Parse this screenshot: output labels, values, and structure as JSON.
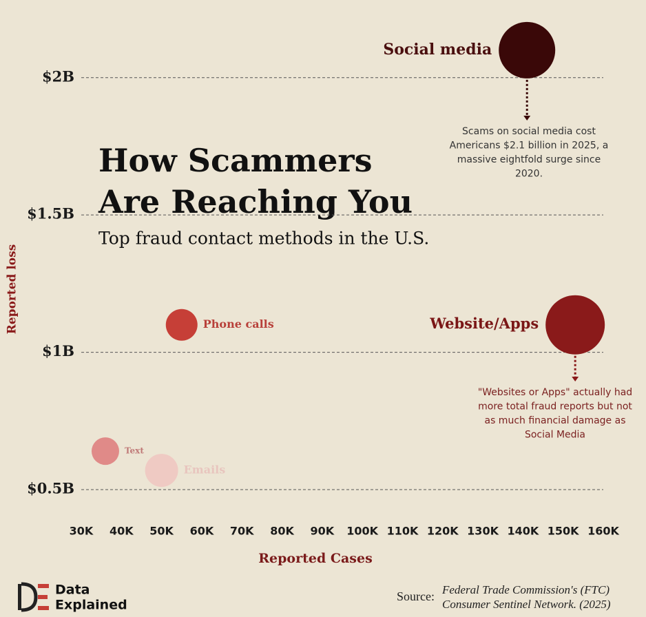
{
  "chart_data": {
    "type": "bubble",
    "title_lines": [
      "How Scammers",
      "Are Reaching You"
    ],
    "subtitle": "Top fraud contact methods in the U.S.",
    "x_label": "Reported Cases",
    "y_label": "Reported loss",
    "xlim": [
      30,
      160
    ],
    "ylim": [
      0.5,
      2.2
    ],
    "xticks": [
      {
        "value": 30,
        "label": "30K"
      },
      {
        "value": 40,
        "label": "40K"
      },
      {
        "value": 50,
        "label": "50K"
      },
      {
        "value": 60,
        "label": "60K"
      },
      {
        "value": 70,
        "label": "70K"
      },
      {
        "value": 80,
        "label": "80K"
      },
      {
        "value": 90,
        "label": "90K"
      },
      {
        "value": 100,
        "label": "100K"
      },
      {
        "value": 110,
        "label": "110K"
      },
      {
        "value": 120,
        "label": "120K"
      },
      {
        "value": 130,
        "label": "130K"
      },
      {
        "value": 140,
        "label": "140K"
      },
      {
        "value": 150,
        "label": "150K"
      },
      {
        "value": 160,
        "label": "160K"
      }
    ],
    "yticks": [
      {
        "value": 0.5,
        "label": "$0.5B"
      },
      {
        "value": 1,
        "label": "$1B"
      },
      {
        "value": 1.5,
        "label": "$1.5B"
      },
      {
        "value": 2,
        "label": "$2B"
      }
    ],
    "grid": true,
    "series": [
      {
        "name": "Social media",
        "color": "#3a0808",
        "x": [
          141
        ],
        "values": [
          2.1
        ],
        "sizes": [
          41
        ]
      },
      {
        "name": "Website/Apps",
        "color": "#8a1a1a",
        "x": [
          153
        ],
        "values": [
          1.1
        ],
        "sizes": [
          43
        ]
      },
      {
        "name": "Phone calls",
        "color": "#c63f37",
        "x": [
          55
        ],
        "values": [
          1.1
        ],
        "sizes": [
          23
        ]
      },
      {
        "name": "Text",
        "color": "#e08a88",
        "x": [
          36
        ],
        "values": [
          0.64
        ],
        "sizes": [
          20
        ]
      },
      {
        "name": "Emails",
        "color": "#efcac3",
        "x": [
          50
        ],
        "values": [
          0.57
        ],
        "sizes": [
          24
        ]
      }
    ],
    "annotations": [
      {
        "lines": [
          "Scams on social media cost",
          "Americans $2.1 billion in 2025, a",
          "massive eightfold surge since",
          "2020."
        ]
      },
      {
        "lines": [
          "\"Websites or Apps\" actually had",
          "more total fraud reports but not",
          "as much financial damage as",
          "Social Media"
        ]
      }
    ]
  },
  "branding": {
    "lines": [
      "Data",
      "Explained"
    ]
  },
  "source": {
    "label": "Source:",
    "lines": [
      "Federal Trade Commission's (FTC)",
      "Consumer Sentinel Network. (2025)"
    ]
  }
}
